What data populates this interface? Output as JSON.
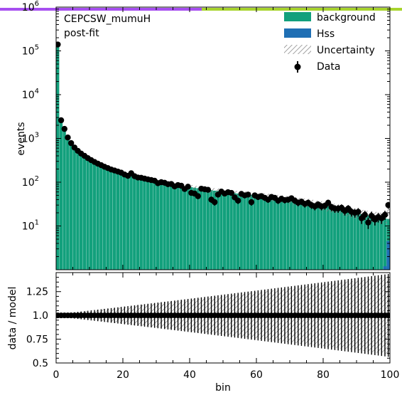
{
  "chart_data": [
    {
      "type": "bar",
      "panel": "main",
      "annotation_lines": [
        "CEPCSW_mumuH",
        "post-fit"
      ],
      "xlabel": "",
      "ylabel": "events",
      "xlim": [
        0,
        100
      ],
      "ylim": [
        1,
        1000000
      ],
      "yscale": "log",
      "y_tick_labels": [
        "10^1",
        "10^2",
        "10^3",
        "10^4",
        "10^5",
        "10^6"
      ],
      "legend": {
        "placement": "top-right",
        "entries": [
          {
            "key": "background",
            "label": "background",
            "color": "#12a07c",
            "kind": "fill"
          },
          {
            "key": "hss",
            "label": "Hss",
            "color": "#1f6fb4",
            "kind": "fill"
          },
          {
            "key": "unc",
            "label": "Uncertainty",
            "color": "#7a7a7a",
            "kind": "hatch"
          },
          {
            "key": "data",
            "label": "Data",
            "color": "#000000",
            "kind": "marker"
          }
        ]
      },
      "x_bins": 100,
      "series": [
        {
          "name": "background",
          "color": "#12a07c",
          "values": [
            140000,
            2600,
            1650,
            1050,
            780,
            620,
            520,
            450,
            400,
            355,
            320,
            290,
            265,
            245,
            225,
            210,
            195,
            185,
            175,
            165,
            157,
            150,
            143,
            137,
            131,
            126,
            121,
            116,
            112,
            108,
            104,
            100,
            97,
            94,
            91,
            88,
            86,
            83,
            81,
            79,
            77,
            75,
            73,
            71,
            69,
            67,
            66,
            64,
            63,
            61,
            60,
            59,
            57,
            56,
            55,
            54,
            53,
            52,
            51,
            50,
            49,
            48,
            47,
            46,
            45,
            44,
            43,
            42,
            41,
            40,
            39,
            38,
            37,
            36,
            35,
            34,
            33,
            32,
            31,
            30,
            29,
            28,
            27,
            26,
            25,
            24,
            23,
            22,
            21,
            20,
            19,
            18.5,
            18,
            17.5,
            17,
            16.5,
            16,
            15.5,
            15,
            14.5
          ]
        },
        {
          "name": "Hss",
          "color": "#1f6fb4",
          "values": [
            0,
            0,
            0,
            0,
            0,
            0,
            0,
            0,
            0,
            0,
            0,
            0,
            0,
            0,
            0,
            0,
            0,
            0,
            0,
            0,
            0,
            0,
            0,
            0,
            0,
            0,
            0,
            0,
            0,
            0,
            0,
            0,
            0,
            0,
            0,
            0,
            0,
            0,
            0,
            0,
            0,
            0,
            0,
            0,
            0,
            0,
            0,
            0,
            0,
            0,
            0,
            0,
            0,
            0,
            0,
            0,
            0,
            0,
            0,
            0,
            0,
            0,
            0,
            0,
            0,
            0,
            0,
            0,
            0,
            0,
            0,
            0,
            0,
            0,
            0,
            0,
            0,
            0,
            0,
            0,
            0,
            0,
            0,
            0,
            0,
            0,
            0,
            0,
            0,
            0,
            0,
            0,
            0,
            0,
            0,
            0,
            0,
            0.2,
            1.2,
            4.5
          ]
        },
        {
          "name": "Data",
          "color": "#000000",
          "values": [
            140000,
            2600,
            1650,
            1050,
            780,
            620,
            520,
            450,
            400,
            355,
            320,
            290,
            265,
            245,
            225,
            210,
            195,
            185,
            175,
            165,
            150,
            140,
            160,
            137,
            128,
            126,
            121,
            116,
            112,
            108,
            95,
            100,
            97,
            90,
            91,
            80,
            86,
            83,
            70,
            79,
            57,
            55,
            48,
            71,
            69,
            67,
            40,
            35,
            52,
            61,
            55,
            59,
            57,
            45,
            38,
            54,
            50,
            52,
            35,
            50,
            46,
            48,
            44,
            40,
            46,
            44,
            38,
            42,
            39,
            40,
            43,
            38,
            34,
            36,
            32,
            34,
            30,
            28,
            31,
            28,
            29,
            34,
            27,
            25,
            25,
            26,
            22,
            25,
            21,
            20,
            21,
            15,
            18,
            12,
            17,
            14,
            16,
            15,
            18,
            30
          ]
        }
      ]
    },
    {
      "type": "scatter",
      "panel": "ratio",
      "xlabel": "bin",
      "ylabel": "data / model",
      "xlim": [
        0,
        100
      ],
      "ylim": [
        0.5,
        1.45
      ],
      "x_ticks": [
        0,
        20,
        40,
        60,
        80,
        100
      ],
      "x_tick_labels": [
        "0",
        "20",
        "40",
        "60",
        "80",
        "100"
      ],
      "y_ticks": [
        0.5,
        0.75,
        1.0,
        1.25
      ],
      "y_tick_labels": [
        "0.5",
        "0.75",
        "1.0",
        "1.25"
      ],
      "ratio_center": 1.0
    }
  ],
  "colors": {
    "purple_bar": "#a74ff0",
    "green_bar": "#a8d42e",
    "background_fill": "#12a07c",
    "hss_fill": "#1f6fb4"
  }
}
